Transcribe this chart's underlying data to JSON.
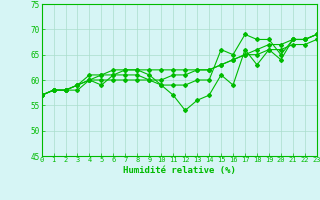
{
  "title": "",
  "xlabel": "Humidité relative (%)",
  "ylabel": "",
  "bg_color": "#d6f5f5",
  "grid_color": "#aaddcc",
  "line_color": "#00bb00",
  "xmin": 0,
  "xmax": 23,
  "ymin": 45,
  "ymax": 75,
  "yticks": [
    45,
    50,
    55,
    60,
    65,
    70,
    75
  ],
  "xticks": [
    0,
    1,
    2,
    3,
    4,
    5,
    6,
    7,
    8,
    9,
    10,
    11,
    12,
    13,
    14,
    15,
    16,
    17,
    18,
    19,
    20,
    21,
    22,
    23
  ],
  "series": [
    [
      57,
      58,
      58,
      58,
      60,
      59,
      61,
      61,
      61,
      60,
      59,
      57,
      54,
      56,
      57,
      61,
      59,
      66,
      63,
      66,
      64,
      68,
      68,
      69
    ],
    [
      57,
      58,
      58,
      59,
      60,
      61,
      61,
      62,
      62,
      62,
      62,
      62,
      62,
      62,
      62,
      63,
      64,
      65,
      65,
      66,
      66,
      67,
      67,
      68
    ],
    [
      57,
      58,
      58,
      59,
      60,
      60,
      60,
      60,
      60,
      60,
      60,
      61,
      61,
      62,
      62,
      63,
      64,
      65,
      66,
      67,
      67,
      68,
      68,
      69
    ],
    [
      57,
      58,
      58,
      59,
      61,
      61,
      62,
      62,
      62,
      61,
      59,
      59,
      59,
      60,
      60,
      66,
      65,
      69,
      68,
      68,
      65,
      68,
      68,
      69
    ]
  ]
}
